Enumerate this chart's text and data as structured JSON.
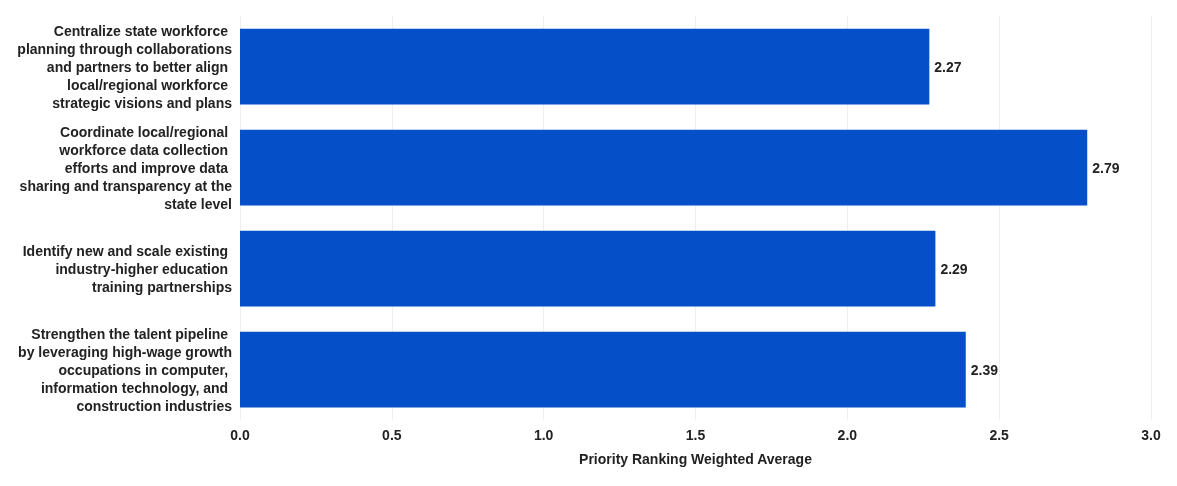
{
  "chart_data": {
    "type": "bar",
    "orientation": "horizontal",
    "xlabel": "Priority Ranking Weighted Average",
    "categories": [
      "Centralize state workforce planning through collaborations and partners to better align local/regional workforce strategic visions and plans",
      "Coordinate local/regional workforce data collection efforts and improve data sharing and transparency at the state level",
      "Identify new and scale existing industry-higher education training partnerships",
      "Strengthen the talent pipeline by leveraging high-wage growth occupations in computer, information technology, and construction industries"
    ],
    "values": [
      2.27,
      2.79,
      2.29,
      2.39
    ],
    "color": "#0550c8",
    "xlim": [
      0,
      3
    ],
    "xticks": [
      {
        "value": 0,
        "label": "0.0"
      },
      {
        "value": 0.5,
        "label": "0.5"
      },
      {
        "value": 1,
        "label": "1.0"
      },
      {
        "value": 1.5,
        "label": "1.5"
      },
      {
        "value": 2,
        "label": "2.0"
      },
      {
        "value": 2.5,
        "label": "2.5"
      },
      {
        "value": 3,
        "label": "3.0"
      }
    ],
    "grid": "x",
    "data_labels": true
  }
}
